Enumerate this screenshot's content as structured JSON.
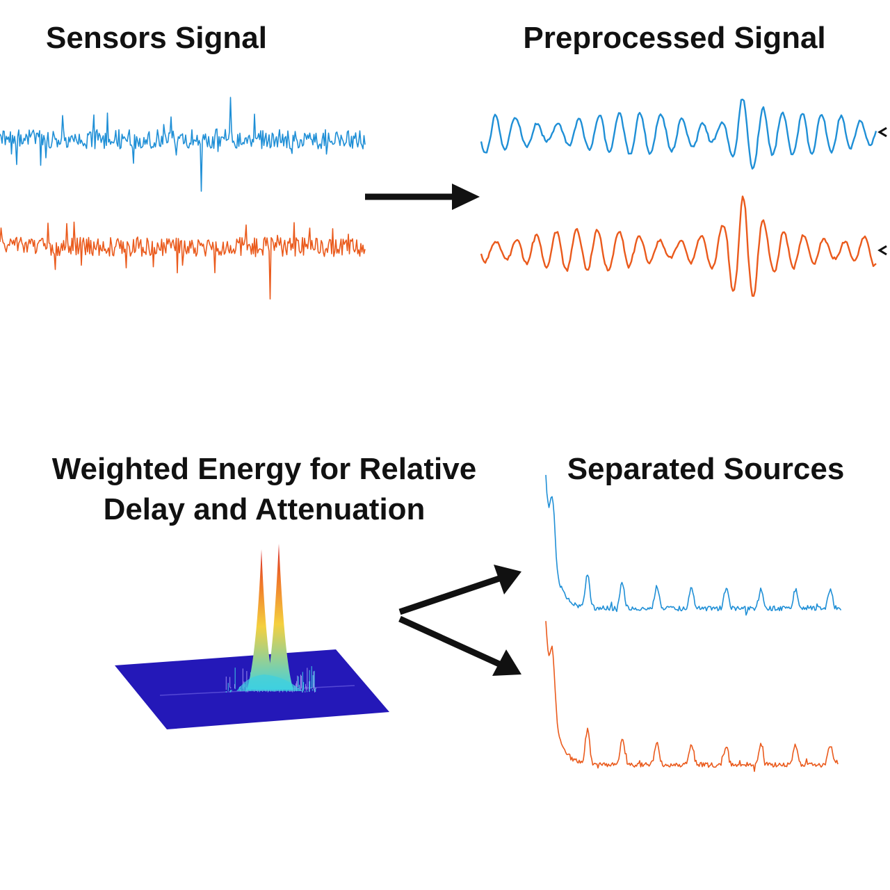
{
  "titles": {
    "sensors": "Sensors Signal",
    "preprocessed": "Preprocessed Signal",
    "weighted_line1": "Weighted Energy for Relative",
    "weighted_line2": "Delay and Attenuation",
    "separated": "Separated Sources"
  },
  "colors": {
    "channel_1": "#1f8fd6",
    "channel_2": "#ea5a1c",
    "arrow": "#111111",
    "surface": "#2418b8",
    "peak_tip": "#d62828",
    "peak_mid": "#f4d03f",
    "peak_base": "#3fd0e0"
  },
  "icons": [
    "arrow-right-icon",
    "arrow-fork-icon"
  ]
}
